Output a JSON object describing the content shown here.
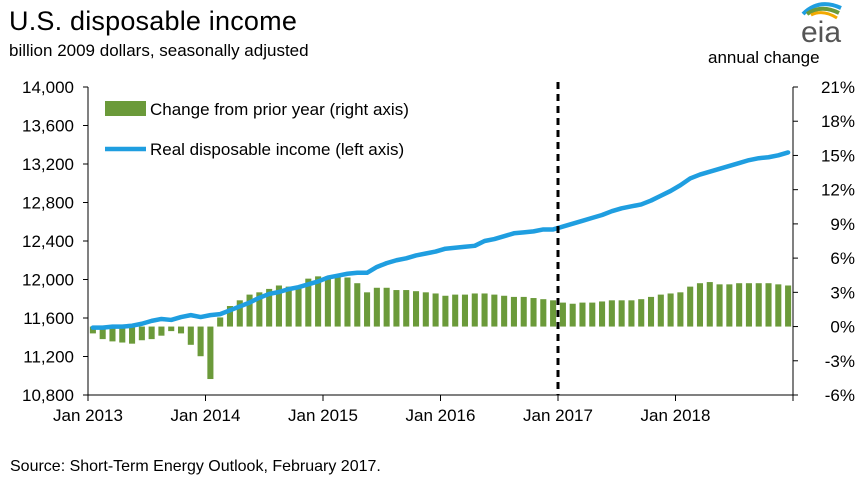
{
  "header": {
    "title": "U.S. disposable income",
    "subtitle": "billion 2009 dollars, seasonally adjusted",
    "right_axis_title": "annual  change",
    "logo_text": "eia"
  },
  "footer": {
    "source": "Source: Short-Term Energy Outlook, February 2017."
  },
  "colors": {
    "bars": "#6b9a3a",
    "line": "#1f9ee0",
    "axis": "#000000",
    "forecast_divider": "#000000"
  },
  "chart_data": {
    "type": "bar+line",
    "x_tick_labels": [
      "Jan 2013",
      "Jan 2014",
      "Jan 2015",
      "Jan 2016",
      "Jan 2017",
      "Jan 2018"
    ],
    "x_start": "2013-01",
    "x_end": "2018-12",
    "forecast_start": "2017-01",
    "left_axis": {
      "ylim": [
        10800,
        14000
      ],
      "ticks": [
        "10,800",
        "11,200",
        "11,600",
        "12,000",
        "12,400",
        "12,800",
        "13,200",
        "13,600",
        "14,000"
      ],
      "tick_values": [
        10800,
        11200,
        11600,
        12000,
        12400,
        12800,
        13200,
        13600,
        14000
      ]
    },
    "right_axis": {
      "ylim": [
        -6,
        21
      ],
      "ticks": [
        "-6%",
        "-3%",
        "0%",
        "3%",
        "6%",
        "9%",
        "12%",
        "15%",
        "18%",
        "21%"
      ],
      "tick_values": [
        -6,
        -3,
        0,
        3,
        6,
        9,
        12,
        15,
        18,
        21
      ]
    },
    "legend": {
      "placement": "top-left",
      "entries": [
        "Change from prior year (right axis)",
        "Real disposable income (left axis)"
      ]
    },
    "series": [
      {
        "name": "Change from prior year (right axis)",
        "kind": "bar",
        "axis": "right",
        "values": [
          -0.6,
          -1.1,
          -1.3,
          -1.4,
          -1.5,
          -1.2,
          -1.1,
          -0.8,
          -0.4,
          -0.6,
          -1.6,
          -2.6,
          -4.6,
          0.8,
          1.8,
          2.3,
          2.8,
          3.0,
          3.3,
          3.6,
          3.5,
          3.5,
          4.2,
          4.4,
          4.4,
          4.5,
          4.3,
          3.8,
          3.0,
          3.4,
          3.4,
          3.2,
          3.2,
          3.1,
          3.0,
          2.9,
          2.7,
          2.8,
          2.8,
          2.9,
          2.9,
          2.8,
          2.7,
          2.6,
          2.6,
          2.5,
          2.4,
          2.3,
          2.1,
          2.0,
          2.1,
          2.1,
          2.2,
          2.3,
          2.3,
          2.3,
          2.4,
          2.6,
          2.8,
          2.9,
          3.0,
          3.5,
          3.8,
          3.9,
          3.7,
          3.7,
          3.8,
          3.8,
          3.8,
          3.8,
          3.7,
          3.6
        ]
      },
      {
        "name": "Real disposable income (left axis)",
        "kind": "line",
        "axis": "left",
        "values": [
          11500,
          11500,
          11510,
          11510,
          11520,
          11540,
          11570,
          11590,
          11580,
          11610,
          11630,
          11610,
          11630,
          11640,
          11680,
          11720,
          11760,
          11810,
          11850,
          11870,
          11900,
          11920,
          11950,
          11980,
          12020,
          12040,
          12060,
          12070,
          12070,
          12130,
          12170,
          12200,
          12220,
          12250,
          12270,
          12290,
          12320,
          12330,
          12340,
          12350,
          12400,
          12420,
          12450,
          12480,
          12490,
          12500,
          12520,
          12520,
          12550,
          12580,
          12610,
          12640,
          12670,
          12710,
          12740,
          12760,
          12780,
          12820,
          12870,
          12920,
          12980,
          13050,
          13090,
          13120,
          13150,
          13180,
          13210,
          13240,
          13260,
          13270,
          13290,
          13320
        ]
      }
    ]
  }
}
